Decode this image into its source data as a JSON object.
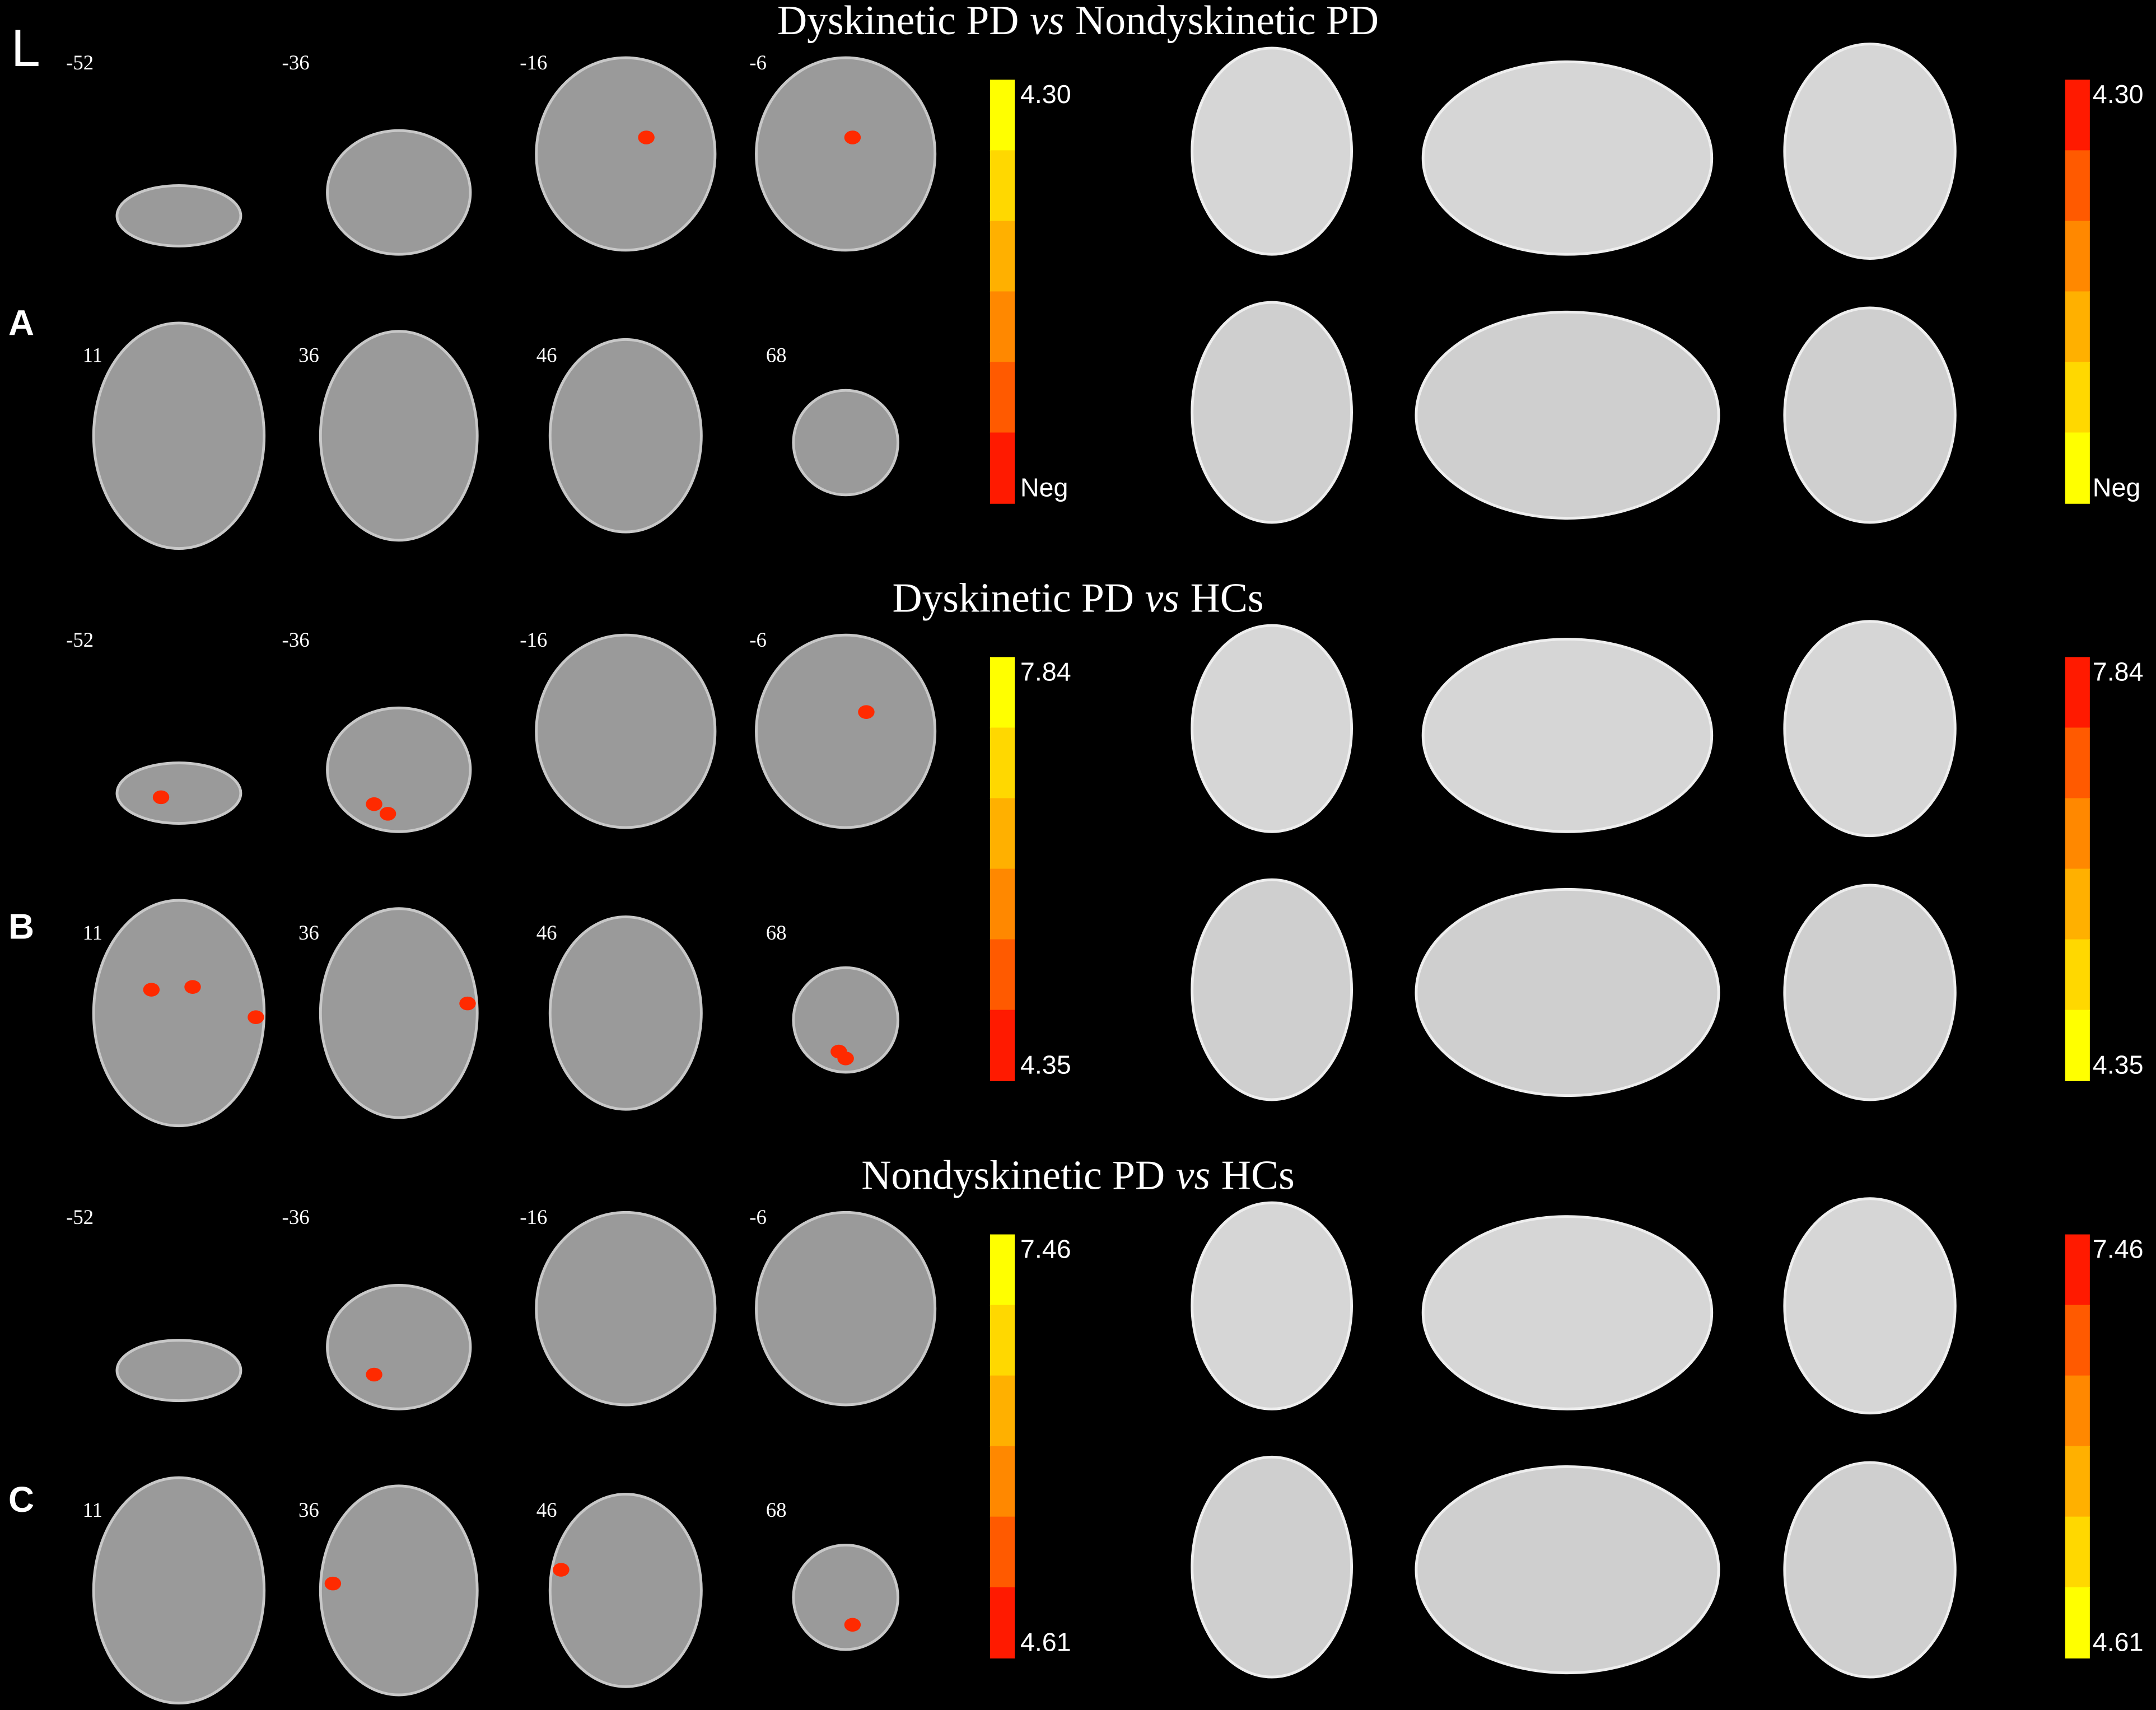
{
  "orientation": "L",
  "slices_top": [
    "-52",
    "-36",
    "-16",
    "-6"
  ],
  "slices_bottom": [
    "11",
    "36",
    "46",
    "68"
  ],
  "panels": [
    {
      "label": "A",
      "title": [
        "Dyskinetic PD",
        "vs",
        "Nondyskinetic PD"
      ],
      "scale_left": [
        "4.30",
        "Neg"
      ],
      "scale_right": [
        "4.30",
        "Neg"
      ]
    },
    {
      "label": "B",
      "title": [
        "Dyskinetic PD",
        "vs",
        "HCs"
      ],
      "scale_left": [
        "7.84",
        "4.35"
      ],
      "scale_right": [
        "7.84",
        "4.35"
      ]
    },
    {
      "label": "C",
      "title": [
        "Nondyskinetic PD",
        "vs",
        "HCs"
      ],
      "scale_left": [
        "7.46",
        "4.61"
      ],
      "scale_right": [
        "7.46",
        "4.61"
      ]
    }
  ]
}
